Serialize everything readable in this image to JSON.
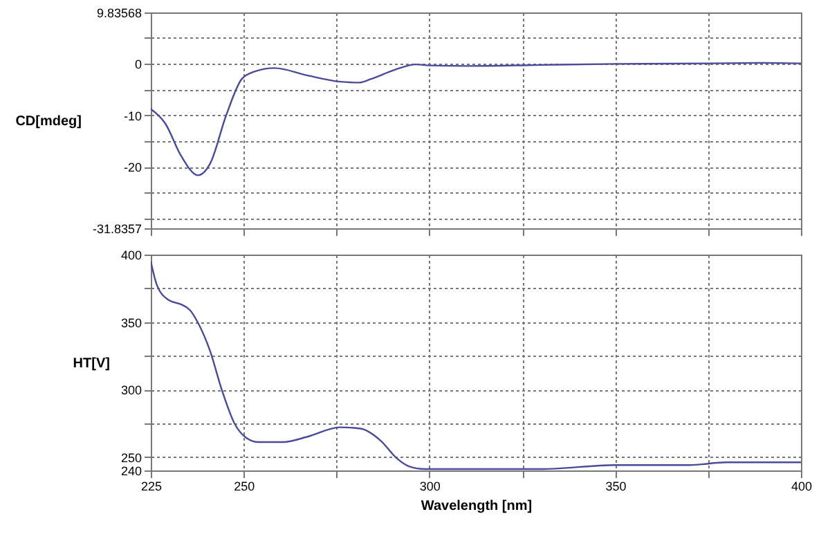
{
  "chart_data": [
    {
      "type": "line",
      "ylabel": "CD[mdeg]",
      "xlim": [
        225,
        400
      ],
      "xticks": [
        225,
        250,
        275,
        300,
        325,
        350,
        375,
        400
      ],
      "ylim": [
        -31.8357,
        9.83568
      ],
      "yticks": [
        -31.8357,
        {
          "value": -30,
          "label": null
        },
        {
          "value": -25,
          "label": null
        },
        -20,
        {
          "value": -15,
          "label": null
        },
        -10,
        {
          "value": -5,
          "label": null
        },
        0,
        {
          "value": 5,
          "label": null
        },
        9.83568
      ],
      "grid": true,
      "tick_labels": "y",
      "series": [
        {
          "color": "#4a4a9a",
          "x": [
            225,
            228.9,
            233.2,
            237.7,
            241,
            245.3,
            249.5,
            252.8,
            258.3,
            267,
            275.6,
            281,
            284.3,
            290.8,
            296.4,
            300,
            310,
            330,
            350,
            375,
            390,
            400
          ],
          "values": [
            -8.8,
            -11.6,
            -17.9,
            -21.6,
            -19.3,
            -10,
            -3,
            -1.6,
            -0.9,
            -2.3,
            -3.5,
            -3.7,
            -3,
            -1.2,
            -0.2,
            -0.4,
            -0.5,
            -0.3,
            -0.1,
            0,
            0.1,
            0
          ]
        }
      ]
    },
    {
      "type": "line",
      "xlabel": "Wavelength [nm]",
      "ylabel": "HT[V]",
      "xlim": [
        225,
        400
      ],
      "xticks": [
        225,
        250,
        {
          "value": 275,
          "label": null
        },
        300,
        {
          "value": 325,
          "label": null
        },
        350,
        {
          "value": 375,
          "label": null
        },
        400
      ],
      "ylim": [
        240,
        400
      ],
      "yticks": [
        240,
        250,
        {
          "value": 275,
          "label": null
        },
        300,
        {
          "value": 325,
          "label": null
        },
        350,
        {
          "value": 375,
          "label": null
        },
        400
      ],
      "grid": true,
      "series": [
        {
          "color": "#4a4a9a",
          "x": [
            225,
            226.7,
            230,
            233.2,
            235.5,
            237.6,
            240.9,
            244.2,
            247.5,
            250.8,
            254,
            260.6,
            267.2,
            275.9,
            281.4,
            286.9,
            291.2,
            294.5,
            298.8,
            300,
            330,
            350,
            370,
            380,
            400
          ],
          "values": [
            395,
            377,
            366,
            363,
            359,
            350,
            329,
            299,
            275,
            264,
            261,
            261,
            265,
            272,
            271,
            262,
            249,
            243,
            241,
            241,
            241,
            244,
            244,
            246,
            246
          ]
        }
      ]
    }
  ]
}
